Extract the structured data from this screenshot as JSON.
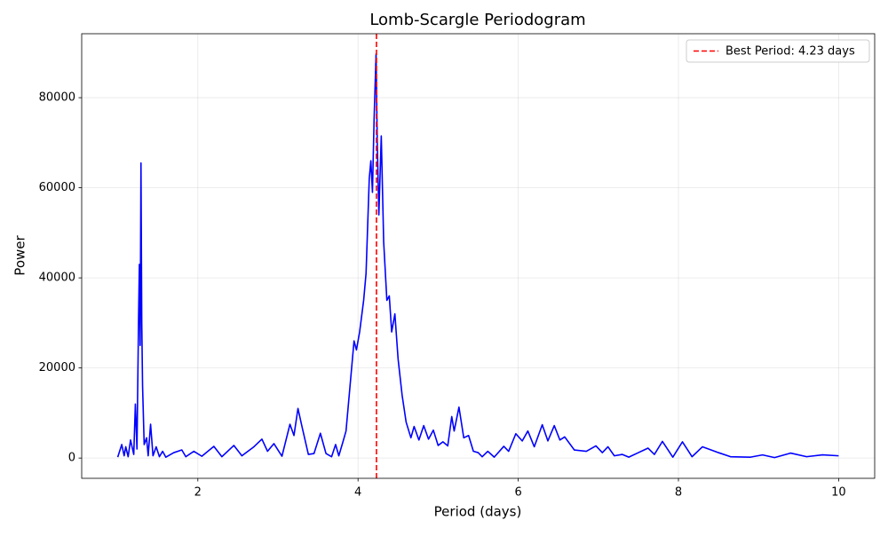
{
  "chart_data": {
    "type": "line",
    "title": "Lomb-Scargle Periodogram",
    "x_label": "Period (days)",
    "y_label": "Power",
    "x": [
      1.0,
      1.05,
      1.08,
      1.1,
      1.13,
      1.16,
      1.2,
      1.22,
      1.24,
      1.26,
      1.27,
      1.28,
      1.29,
      1.3,
      1.31,
      1.33,
      1.36,
      1.38,
      1.41,
      1.44,
      1.48,
      1.52,
      1.56,
      1.6,
      1.7,
      1.8,
      1.85,
      1.95,
      2.05,
      2.2,
      2.3,
      2.45,
      2.55,
      2.7,
      2.8,
      2.87,
      2.95,
      3.05,
      3.15,
      3.2,
      3.25,
      3.3,
      3.38,
      3.45,
      3.53,
      3.6,
      3.67,
      3.72,
      3.76,
      3.81,
      3.85,
      3.9,
      3.95,
      3.98,
      4.02,
      4.07,
      4.1,
      4.14,
      4.16,
      4.18,
      4.2,
      4.225,
      4.24,
      4.26,
      4.29,
      4.32,
      4.36,
      4.39,
      4.42,
      4.46,
      4.5,
      4.55,
      4.6,
      4.66,
      4.7,
      4.76,
      4.82,
      4.88,
      4.94,
      5.0,
      5.06,
      5.12,
      5.17,
      5.2,
      5.26,
      5.32,
      5.38,
      5.44,
      5.5,
      5.55,
      5.62,
      5.7,
      5.82,
      5.88,
      5.97,
      6.05,
      6.12,
      6.2,
      6.3,
      6.37,
      6.45,
      6.52,
      6.58,
      6.7,
      6.85,
      6.97,
      7.05,
      7.12,
      7.2,
      7.3,
      7.38,
      7.5,
      7.62,
      7.7,
      7.8,
      7.93,
      8.05,
      8.17,
      8.3,
      8.5,
      8.65,
      8.9,
      9.05,
      9.2,
      9.4,
      9.6,
      9.8,
      10.0
    ],
    "series": [
      {
        "color": "#0000ff",
        "values": [
          200,
          3000,
          500,
          2500,
          300,
          4000,
          800,
          12000,
          2000,
          31000,
          43000,
          25000,
          65500,
          30000,
          16000,
          3000,
          4500,
          500,
          7500,
          500,
          2500,
          300,
          1500,
          200,
          1200,
          1800,
          300,
          1500,
          400,
          2600,
          300,
          2800,
          500,
          2500,
          4200,
          1500,
          3200,
          400,
          7500,
          5000,
          11000,
          7000,
          800,
          1000,
          5500,
          1000,
          300,
          3000,
          500,
          3500,
          6000,
          16000,
          26000,
          24000,
          28000,
          35000,
          41000,
          62000,
          66000,
          59000,
          75000,
          89700,
          70000,
          54000,
          71500,
          48000,
          35000,
          36000,
          28000,
          32000,
          22000,
          14000,
          8000,
          4500,
          7000,
          4000,
          7200,
          4200,
          6200,
          2800,
          3600,
          2700,
          9200,
          6000,
          11300,
          4500,
          5000,
          1500,
          1200,
          300,
          1500,
          200,
          2600,
          1500,
          5400,
          3800,
          6000,
          2500,
          7400,
          3800,
          7200,
          4000,
          4700,
          1800,
          1500,
          2700,
          1200,
          2500,
          500,
          800,
          200,
          1200,
          2200,
          800,
          3700,
          200,
          3600,
          300,
          2500,
          1200,
          300,
          200,
          700,
          100,
          1100,
          300,
          700,
          500
        ]
      }
    ],
    "reference_line": {
      "x": 4.23,
      "label": "Best Period: 4.23 days",
      "color": "#ff0000"
    },
    "xlim": [
      0.55,
      10.45
    ],
    "ylim": [
      -4500,
      94200
    ],
    "xticks": [
      2,
      4,
      6,
      8,
      10
    ],
    "yticks": [
      0,
      20000,
      40000,
      60000,
      80000
    ],
    "grid": true,
    "legend": "upper right"
  }
}
